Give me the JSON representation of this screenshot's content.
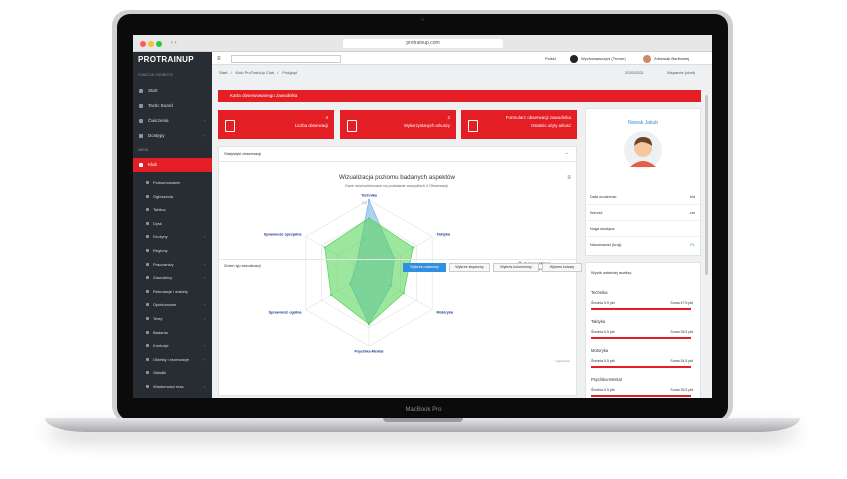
{
  "browser": {
    "url": "protrainup.com"
  },
  "sidebar": {
    "logo": "PROTRAINUP",
    "section_personal": "FUNKCJE OSOBISTE",
    "personal_items": [
      "Start",
      "Tactic Board",
      "Ćwiczenia",
      "Dostępy"
    ],
    "section_menu": "MENU",
    "active_item": "Klub",
    "sub_items": [
      "Podsumowanie",
      "Ogłoszenia",
      "Tablica",
      "Dysk",
      "Drużyny",
      "Regiony",
      "Pracownicy",
      "Zawodnicy",
      "Rekrutacje i ankiety",
      "Opiekunowie",
      "Testy",
      "Badania",
      "Kontuzje",
      "Obiekty i rezerwacje",
      "Składki",
      "Wiadomości mas."
    ]
  },
  "header": {
    "language": "Polski",
    "role": "Wychowawczyni (Trener)",
    "user": "Zdrowiak Bartłomiej",
    "breadcrumb": [
      "Start",
      "Klub ProTrainUp Club",
      "Podgląd"
    ],
    "season": "2020/2021",
    "support": "Wsparcie (chat)"
  },
  "alert_bar": "Karta obserwowanego zawodnika",
  "cards": [
    {
      "value": "4",
      "label": "Liczba obserwacji"
    },
    {
      "value": "2",
      "label": "Wykorzystanych arkuszy"
    },
    {
      "value": "Formularz obserwacji zawodnika",
      "label": "Ostatnio użyty arkusz"
    }
  ],
  "stats_panel": {
    "title": "Statystyki obserwacji",
    "change_label": "Zmień typ wizualizacji",
    "buttons": [
      "Wykres radarowy",
      "Wykres słupkowy",
      "Wykres kolumnowy",
      "Wykres kołowy"
    ]
  },
  "chart_data": {
    "type": "radar",
    "title": "Wizualizacja poziomu badanych aspektów",
    "subtitle": "Dane skonsolidowane na podstawie wszystkich 4 Obserwacji.",
    "categories": [
      "Technika",
      "Taktyka",
      "Motoryka",
      "Psychika-Mental",
      "Sprawność ogólna",
      "Sprawność specjalna"
    ],
    "series": [
      {
        "name": "Suma punktowa",
        "color": "#7cb5ec",
        "values": [
          100,
          40,
          35,
          70,
          30,
          20
        ]
      },
      {
        "name": "Poziom procentowy",
        "color": "#5cd65c",
        "values": [
          75,
          70,
          55,
          70,
          60,
          70
        ]
      }
    ],
    "rlim": [
      0,
      100
    ],
    "rticks": [
      25,
      50,
      75,
      100
    ],
    "legend": "right",
    "credits": "Highcharts"
  },
  "profile": {
    "name": "Nowak Jakub",
    "fields": [
      {
        "label": "Data urodzenia:",
        "value": "b/d"
      },
      {
        "label": "Wzrost:",
        "value": "- cm"
      },
      {
        "label": "Noga wiodąca:"
      },
      {
        "label": "Narodowość (kraj):",
        "value": "PL"
      }
    ]
  },
  "analysis": {
    "title": "Wynik ostatniej analizy",
    "items": [
      {
        "name": "Technika",
        "avg": "Średnia 5.5 pkt",
        "sum": "Suma 47.5 pkt"
      },
      {
        "name": "Taktyka",
        "avg": "Średnia 5.5 pkt",
        "sum": "Suma 35.5 pkt"
      },
      {
        "name": "Motoryka",
        "avg": "Średnia 5.5 pkt",
        "sum": "Suma 34.5 pkt"
      },
      {
        "name": "Psychika-Mental",
        "avg": "Średnia 5.5 pkt",
        "sum": "Suma 35.5 pkt"
      }
    ]
  },
  "device_label": "MacBook Pro"
}
